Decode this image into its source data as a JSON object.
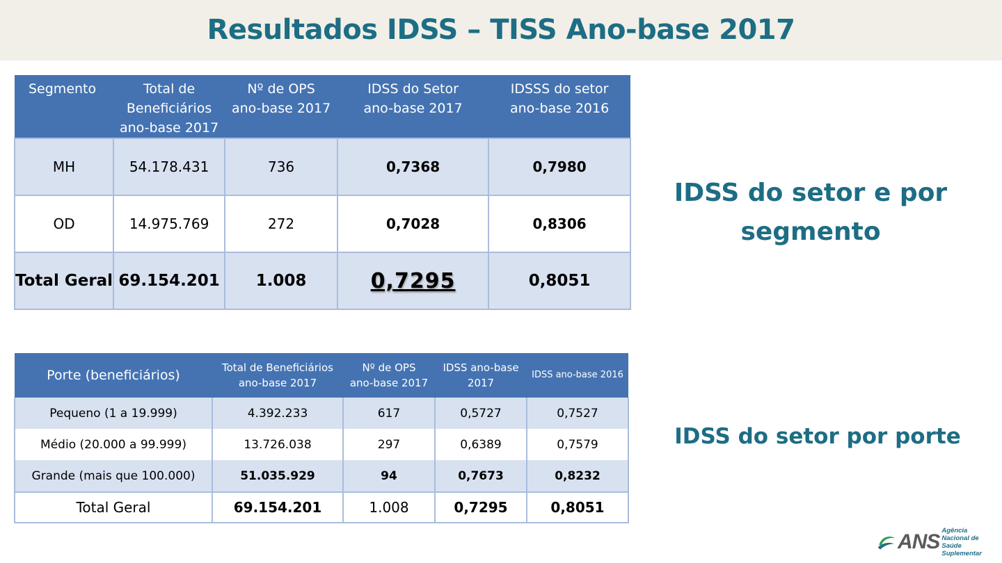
{
  "title": "Resultados IDSS – TISS Ano-base 2017",
  "segment_table": {
    "headers": {
      "segmento": "Segmento",
      "beneficiarios_l1": "Total de",
      "beneficiarios_l2": "Beneficiários",
      "beneficiarios_l3": "ano-base 2017",
      "ops_l1": "Nº de OPS",
      "ops_l2": "ano-base 2017",
      "idss2017_l1": "IDSS do Setor",
      "idss2017_l2": "ano-base 2017",
      "idss2016_l1": "IDSSS do setor",
      "idss2016_l2": "ano-base 2016"
    },
    "rows": [
      {
        "segmento": "MH",
        "beneficiarios": "54.178.431",
        "ops": "736",
        "idss2017": "0,7368",
        "idss2016": "0,7980"
      },
      {
        "segmento": "OD",
        "beneficiarios": "14.975.769",
        "ops": "272",
        "idss2017": "0,7028",
        "idss2016": "0,8306"
      },
      {
        "segmento": "Total Geral",
        "beneficiarios": "69.154.201",
        "ops": "1.008",
        "idss2017": "0,7295",
        "idss2016": "0,8051"
      }
    ]
  },
  "segment_caption_l1": "IDSS do setor e por",
  "segment_caption_l2": "segmento",
  "porte_table": {
    "headers": {
      "porte": "Porte (beneficiários)",
      "beneficiarios_l1": "Total de Beneficiários",
      "beneficiarios_l2": "ano-base 2017",
      "ops_l1": "Nº de OPS",
      "ops_l2": "ano-base 2017",
      "idss2017_l1": "IDSS ano-base",
      "idss2017_l2": "2017",
      "idss2016": "IDSS ano-base 2016"
    },
    "rows": [
      {
        "porte": "Pequeno (1 a 19.999)",
        "beneficiarios": "4.392.233",
        "ops": "617",
        "idss2017": "0,5727",
        "idss2016": "0,7527"
      },
      {
        "porte": "Médio (20.000 a 99.999)",
        "beneficiarios": "13.726.038",
        "ops": "297",
        "idss2017": "0,6389",
        "idss2016": "0,7579"
      },
      {
        "porte": "Grande (mais que 100.000)",
        "beneficiarios": "51.035.929",
        "ops": "94",
        "idss2017": "0,7673",
        "idss2016": "0,8232"
      },
      {
        "porte": "Total Geral",
        "beneficiarios": "69.154.201",
        "ops": "1.008",
        "idss2017": "0,7295",
        "idss2016": "0,8051"
      }
    ]
  },
  "porte_caption": "IDSS do setor por porte",
  "logo": {
    "text": "ANS",
    "sub_l1": "Agência Nacional de",
    "sub_l2": "Saúde Suplementar",
    "colors": {
      "green": "#2e9a4a",
      "blue": "#1f6f8a",
      "gray": "#5a5a5a"
    }
  },
  "colors": {
    "title": "#1d6d84",
    "header_bg": "#4573b2",
    "band_bg": "#d8e1f0",
    "title_bar_bg": "#f1efe7"
  }
}
